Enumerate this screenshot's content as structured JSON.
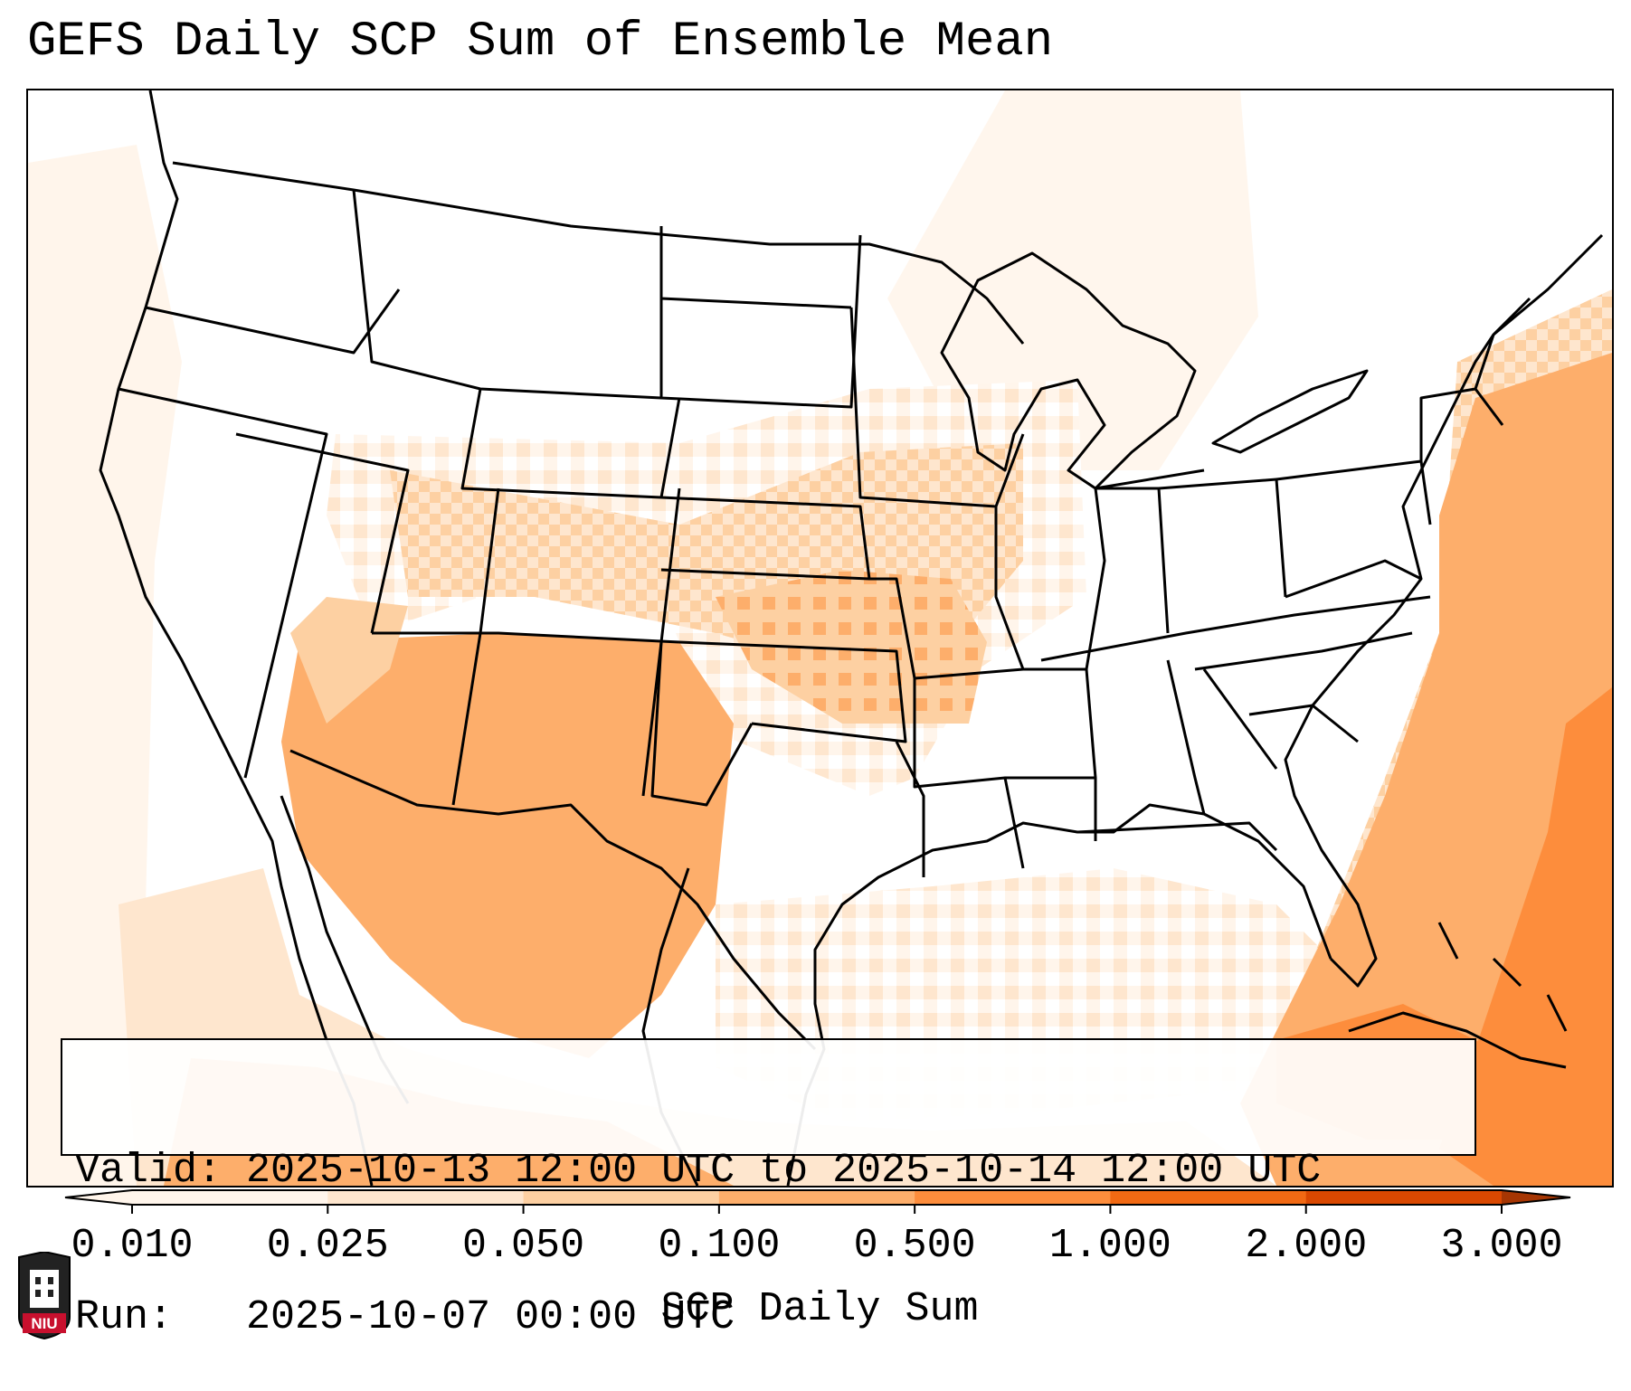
{
  "title": "GEFS Daily SCP Sum of Ensemble Mean",
  "info": {
    "valid_line": "Valid: 2025-10-13 12:00 UTC to 2025-10-14 12:00 UTC",
    "run_line": "Run:   2025-10-07 00:00 UTC"
  },
  "colorbar": {
    "label": "SCP Daily Sum",
    "levels": [
      "0.010",
      "0.025",
      "0.050",
      "0.100",
      "0.500",
      "1.000",
      "2.000",
      "3.000"
    ],
    "colors": [
      "#fff5eb",
      "#fee6ce",
      "#fdd0a2",
      "#fdae6b",
      "#fd8d3c",
      "#f16913",
      "#d94801",
      "#a63603"
    ],
    "extend": "both"
  },
  "map": {
    "field_colors": {
      "very_light": "#fff5eb",
      "light": "#fee6ce",
      "medium": "#fdd0a2",
      "orange": "#fdae6b",
      "dark_orange": "#fd8d3c"
    }
  },
  "logo": {
    "text": "NIU"
  }
}
